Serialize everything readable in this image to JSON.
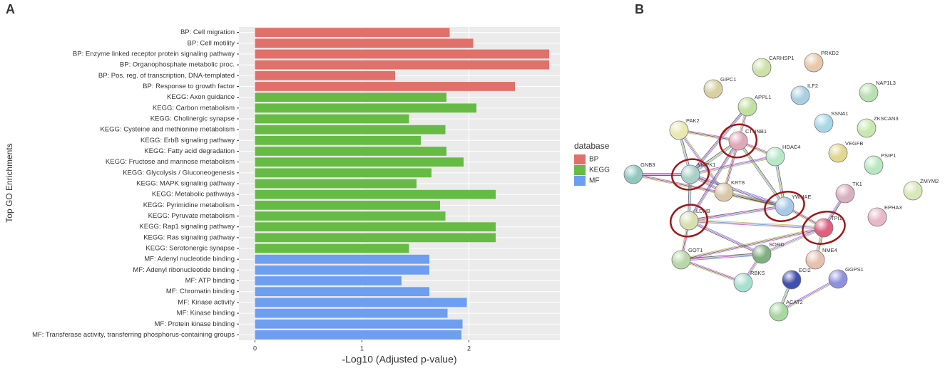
{
  "panel_labels": [
    "A",
    "B"
  ],
  "chart_data": {
    "type": "bar",
    "orientation": "horizontal",
    "xlabel": "-Log10 (Adjusted p-value)",
    "ylabel": "Top GO Enrichments",
    "legend_title": "database",
    "categories": [
      "BP: Cell migration",
      "BP: Cell motility",
      "BP: Enzyme linked receptor protein signaling pathway",
      "BP: Organophosphate metabolic proc.",
      "BP: Pos. reg. of transcription, DNA-templated",
      "BP: Response to growth factor",
      "KEGG: Axon guidance",
      "KEGG: Carbon metabolism",
      "KEGG: Cholinergic synapse",
      "KEGG: Cysteine and methionine metabolism",
      "KEGG: ErbB signaling pathway",
      "KEGG: Fatty acid degradation",
      "KEGG: Fructose and mannose metabolism",
      "KEGG: Glycolysis / Gluconeogenesis",
      "KEGG: MAPK signaling pathway",
      "KEGG: Metabolic pathways",
      "KEGG: Pyrimidine metabolism",
      "KEGG: Pyruvate metabolism",
      "KEGG: Rap1 signaling pathway",
      "KEGG: Ras signaling pathway",
      "KEGG: Serotonergic synapse",
      "MF: Adenyl nucleotide binding",
      "MF: Adenyl ribonucleotide binding",
      "MF: ATP binding",
      "MF: Chromatin binding",
      "MF: Kinase activity",
      "MF: Kinase binding",
      "MF: Protein kinase binding",
      "MF: Transferase activity, transferring phosphorus-containing groups"
    ],
    "series": [
      {
        "name": "BP",
        "color": "#e0706a",
        "values": [
          1.82,
          2.04,
          2.75,
          2.75,
          1.31,
          2.43,
          null,
          null,
          null,
          null,
          null,
          null,
          null,
          null,
          null,
          null,
          null,
          null,
          null,
          null,
          null,
          null,
          null,
          null,
          null,
          null,
          null,
          null,
          null
        ]
      },
      {
        "name": "KEGG",
        "color": "#66bb44",
        "values": [
          null,
          null,
          null,
          null,
          null,
          null,
          1.79,
          2.07,
          1.44,
          1.78,
          1.55,
          1.79,
          1.95,
          1.65,
          1.51,
          2.25,
          1.73,
          1.78,
          2.25,
          2.25,
          1.44,
          null,
          null,
          null,
          null,
          null,
          null,
          null,
          null
        ]
      },
      {
        "name": "MF",
        "color": "#6d9ef0",
        "values": [
          null,
          null,
          null,
          null,
          null,
          null,
          null,
          null,
          null,
          null,
          null,
          null,
          null,
          null,
          null,
          null,
          null,
          null,
          null,
          null,
          null,
          1.63,
          1.63,
          1.37,
          1.63,
          1.98,
          1.8,
          1.94,
          1.93
        ]
      }
    ],
    "xlim": [
      -0.15,
      2.85
    ],
    "xticks": [
      0,
      1,
      2
    ],
    "grid": true
  },
  "network": {
    "nodes": [
      "CARHSP1",
      "PRKD2",
      "GIPC1",
      "NAP1L3",
      "ILF2",
      "APPL1",
      "SSNA1",
      "ZKSCAN3",
      "PAK2",
      "CTNNB1",
      "HDAC4",
      "VEGFB",
      "PSIP1",
      "GNB3",
      "MAPK1",
      "KRT8",
      "YWHAE",
      "TK1",
      "ZMYM2",
      "EPHA3",
      "LDHB",
      "TPI1",
      "SORD",
      "GOT1",
      "NME4",
      "ECI2",
      "GGPS1",
      "RBKS",
      "ACAT2"
    ]
  }
}
